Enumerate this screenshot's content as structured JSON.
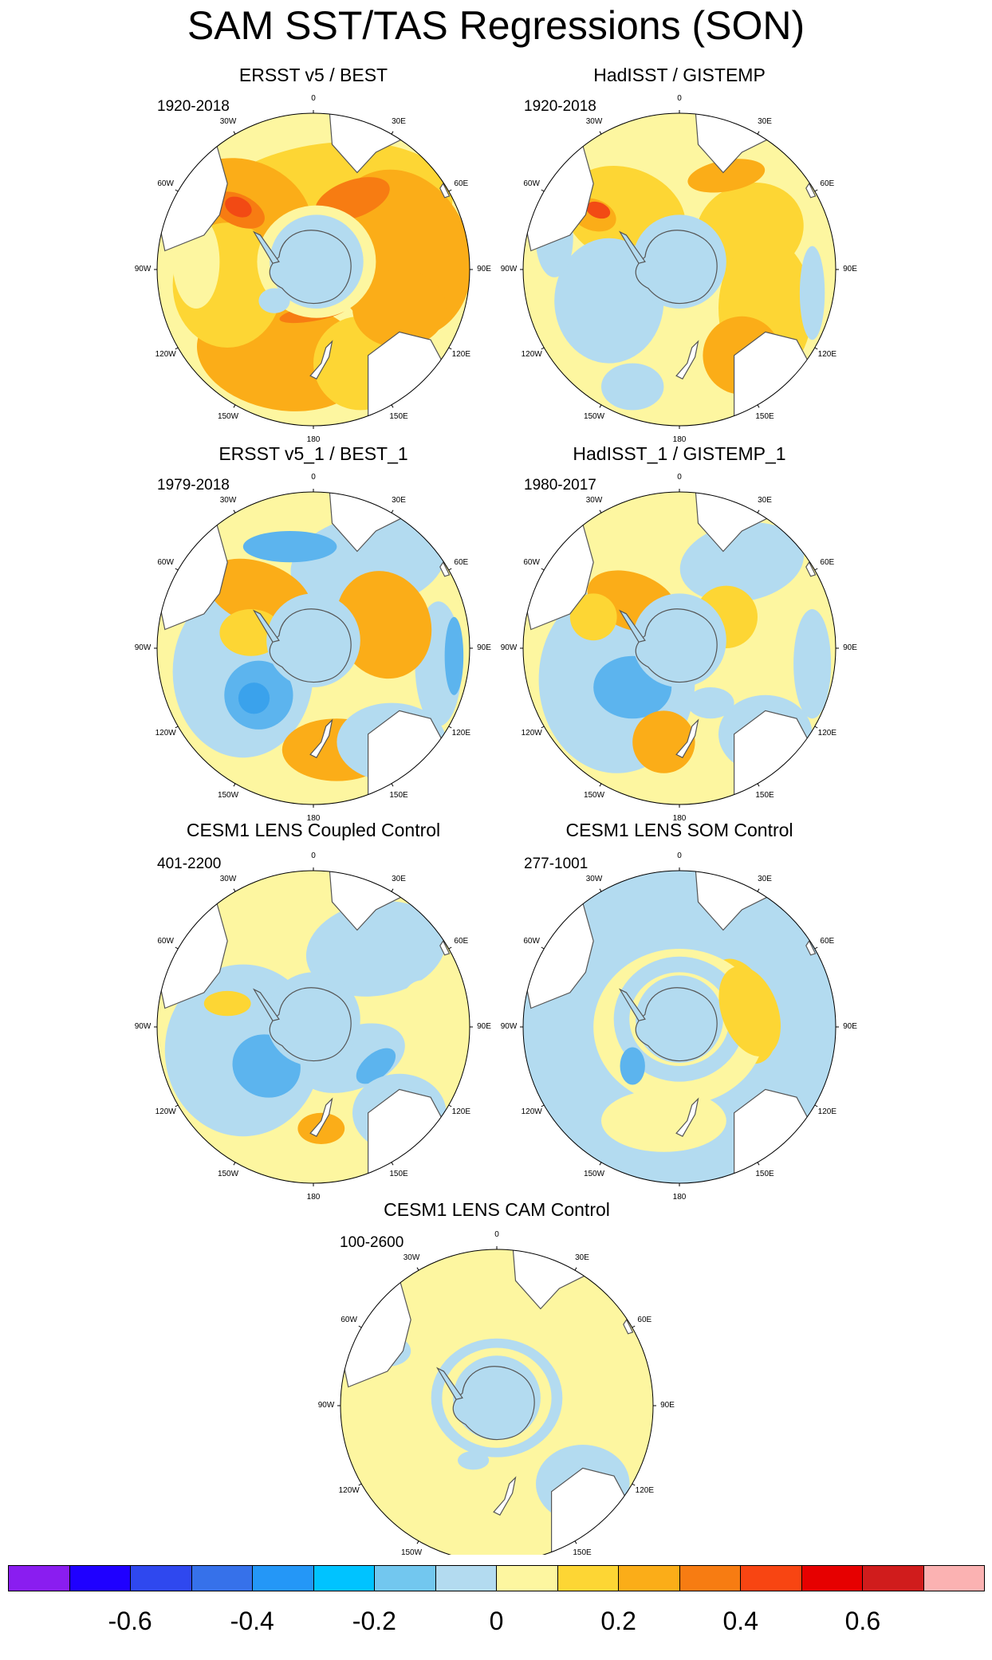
{
  "title": "SAM SST/TAS Regressions (SON)",
  "colors": {
    "pale_blue": "#b3dbf0",
    "light_blue": "#7dc8ee",
    "mid_blue": "#5cb4ee",
    "strong_blue": "#3aa2ec",
    "pale_yellow": "#fdf6a0",
    "yellow": "#fdd634",
    "orange": "#fbad18",
    "dark_orange": "#f77c12",
    "red_orange": "#f24a14",
    "red": "#e01b1b",
    "land": "#ffffff",
    "coast": "#555555"
  },
  "panels": [
    {
      "title": "ERSST v5 / BEST",
      "period": "1920-2018",
      "base": "pale_yellow"
    },
    {
      "title": "HadISST / GISTEMP",
      "period": "1920-2018",
      "base": "pale_yellow"
    },
    {
      "title": "ERSST v5_1 / BEST_1",
      "period": "1979-2018",
      "base": "pale_yellow"
    },
    {
      "title": "HadISST_1 / GISTEMP_1",
      "period": "1980-2017",
      "base": "pale_yellow"
    },
    {
      "title": "CESM1 LENS Coupled Control",
      "period": "401-2200",
      "base": "pale_yellow"
    },
    {
      "title": "CESM1 LENS SOM Control",
      "period": "277-1001",
      "base": "pale_blue"
    },
    {
      "title": "CESM1 LENS CAM Control",
      "period": "100-2600",
      "base": "pale_yellow"
    }
  ],
  "lon_labels": [
    "0",
    "30E",
    "60E",
    "90E",
    "120E",
    "150E",
    "180",
    "150W",
    "120W",
    "90W",
    "60W",
    "30W"
  ],
  "colorbar": {
    "colors": [
      "#8a1df0",
      "#1f00ff",
      "#2f48ef",
      "#3671ea",
      "#2497f7",
      "#00c3ff",
      "#72c7ef",
      "#b3dbf0",
      "#fdf6a0",
      "#fdd634",
      "#fbad18",
      "#f77c12",
      "#f84512",
      "#e60000",
      "#d01c1c",
      "#fbb2b2"
    ],
    "labels": [
      "-0.6",
      "-0.4",
      "-0.2",
      "0",
      "0.2",
      "0.4",
      "0.6"
    ]
  }
}
